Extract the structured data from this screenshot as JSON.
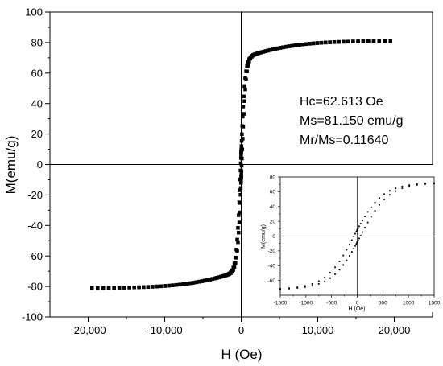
{
  "chart_data": [
    {
      "type": "scatter",
      "title": "",
      "xlabel": "H (Oe)",
      "ylabel": "M(emu/g)",
      "xlim": [
        -25000,
        25000
      ],
      "ylim": [
        -100,
        100
      ],
      "x_ticks": [
        -20000,
        -10000,
        0,
        10000,
        20000
      ],
      "x_tick_labels": [
        "-20,000",
        "-10,000",
        "0",
        "10,000",
        "20,000"
      ],
      "y_ticks": [
        -100,
        -80,
        -60,
        -40,
        -20,
        0,
        20,
        40,
        60,
        80,
        100
      ],
      "y_tick_labels": [
        "-100",
        "-80",
        "-60",
        "-40",
        "-20",
        "0",
        "20",
        "40",
        "60",
        "80",
        "100"
      ],
      "marker": "square",
      "color": "#000000",
      "grid": false,
      "legend": "none",
      "annotations": [
        "Hc=62.613 Oe",
        "Ms=81.150 emu/g",
        "Mr/Ms=0.11640"
      ],
      "curve": {
        "Ms": 81.15,
        "Hc": 62.613,
        "Mr_over_Ms": 0.1164,
        "h_max": 19500,
        "n_points_per_branch": 115
      }
    },
    {
      "type": "scatter",
      "title": "",
      "xlabel": "H (Oe)",
      "ylabel": "M(emu/g)",
      "xlim": [
        -1500,
        1500
      ],
      "ylim": [
        -80,
        80
      ],
      "x_ticks": [
        -1500,
        -1000,
        -500,
        0,
        500,
        1000,
        1500
      ],
      "x_tick_labels": [
        "-1500",
        "-1000",
        "-500",
        "0",
        "500",
        "1000",
        "1500"
      ],
      "y_ticks": [
        -60,
        -40,
        -20,
        0,
        20,
        40,
        60,
        80
      ],
      "y_tick_labels": [
        "-60",
        "-40",
        "-20",
        "0",
        "20",
        "40",
        "60",
        "80"
      ],
      "marker": "square",
      "color": "#000000",
      "grid": false,
      "curve": {
        "Ms": 81.15,
        "Hc": 62.613,
        "Mr_over_Ms": 0.1164,
        "h_max": 1500,
        "n_points_per_branch": 38
      }
    }
  ]
}
